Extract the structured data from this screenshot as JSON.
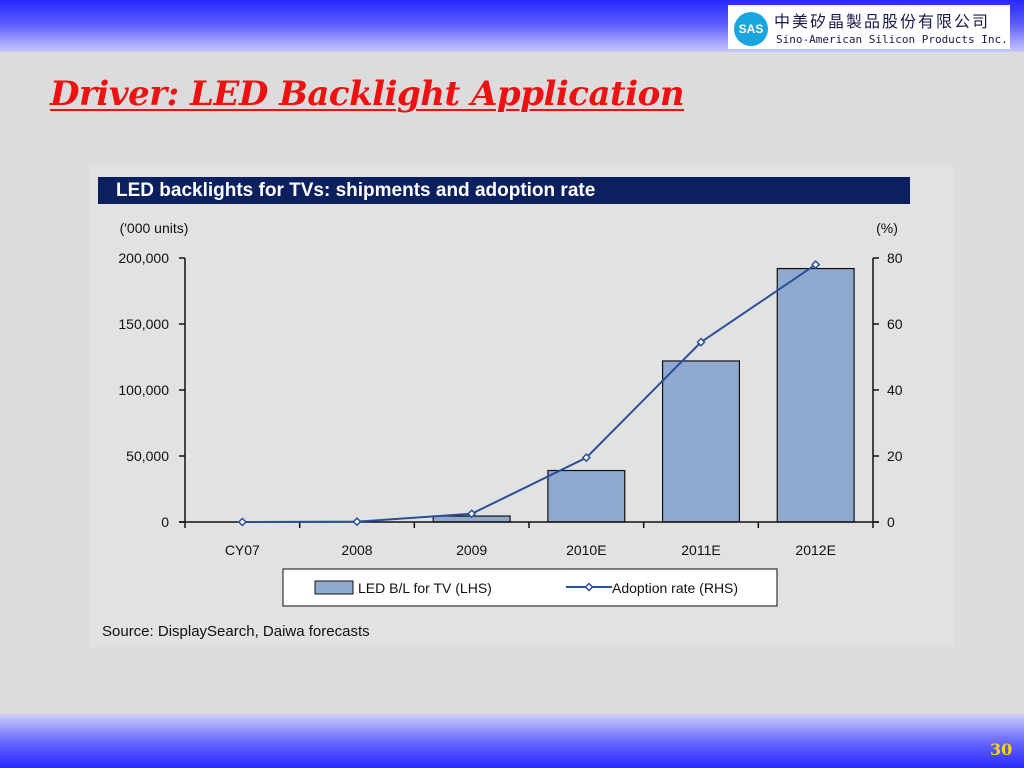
{
  "company": {
    "logo_text": "SAS",
    "name_cn": "中美矽晶製品股份有限公司",
    "name_en": "Sino-American Silicon Products Inc."
  },
  "slide": {
    "title": "Driver: LED Backlight Application",
    "page_number": "30"
  },
  "colors": {
    "title_red": "#ee1111",
    "header_navy": "#0c2060",
    "bar_fill": "#8fa9cf",
    "line_blue": "#2a4f9a"
  },
  "chart_data": {
    "type": "bar",
    "title": "LED backlights for TVs: shipments and adoption rate",
    "left_unit": "('000 units)",
    "right_unit": "(%)",
    "categories": [
      "CY07",
      "2008",
      "2009",
      "2010E",
      "2011E",
      "2012E"
    ],
    "ylim_left": [
      0,
      200000
    ],
    "ylim_right": [
      0,
      80
    ],
    "left_ticks": [
      "0",
      "50,000",
      "100,000",
      "150,000",
      "200,000"
    ],
    "right_ticks": [
      "0",
      "20",
      "40",
      "60",
      "80"
    ],
    "series": [
      {
        "name": "LED B/L for TV (LHS)",
        "type": "bar",
        "axis": "left",
        "values": [
          0,
          0,
          4500,
          39000,
          122000,
          192000
        ]
      },
      {
        "name": "Adoption rate (RHS)",
        "type": "line",
        "axis": "right",
        "values": [
          0,
          0.1,
          2.5,
          19.5,
          54.5,
          78
        ]
      }
    ],
    "legend_position": "bottom",
    "grid": false,
    "source": "Source: DisplaySearch, Daiwa forecasts"
  }
}
